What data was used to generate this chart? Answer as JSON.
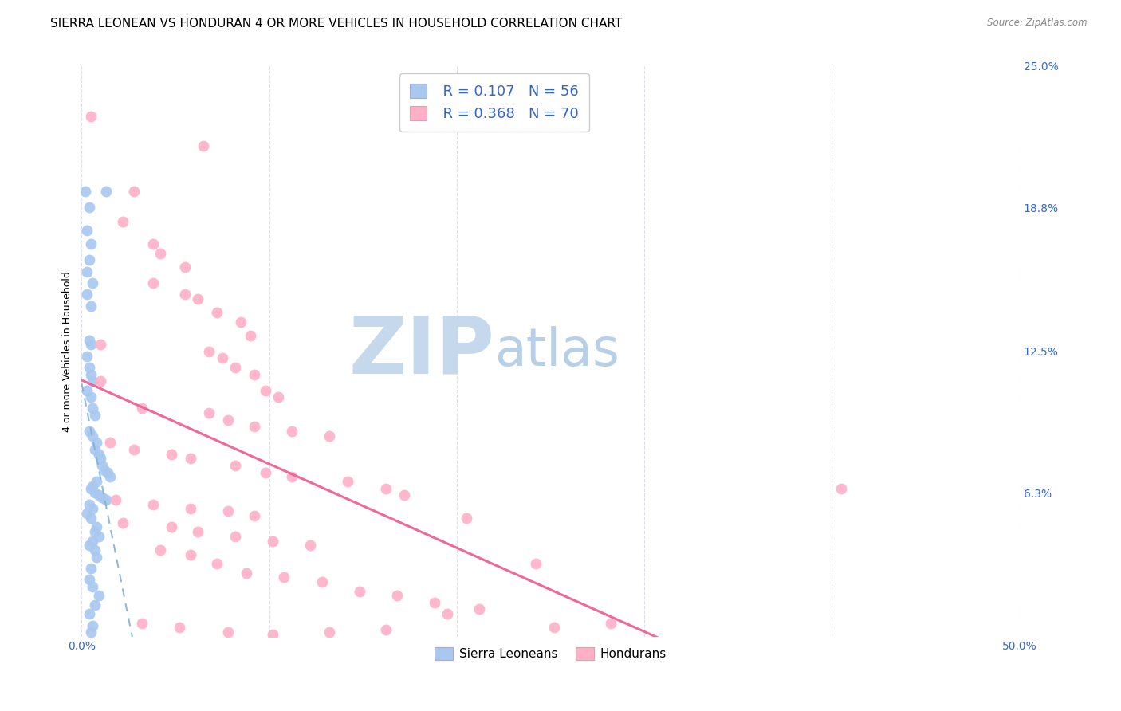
{
  "title": "SIERRA LEONEAN VS HONDURAN 4 OR MORE VEHICLES IN HOUSEHOLD CORRELATION CHART",
  "source": "Source: ZipAtlas.com",
  "ylabel": "4 or more Vehicles in Household",
  "xlabel": "",
  "xlim": [
    0.0,
    0.5
  ],
  "ylim": [
    0.0,
    0.25
  ],
  "xtick_positions": [
    0.0,
    0.1,
    0.2,
    0.3,
    0.4,
    0.5
  ],
  "xticklabels": [
    "0.0%",
    "",
    "",
    "",
    "",
    "50.0%"
  ],
  "ytick_positions": [
    0.0,
    0.063,
    0.125,
    0.188,
    0.25
  ],
  "yticklabels": [
    "",
    "6.3%",
    "12.5%",
    "18.8%",
    "25.0%"
  ],
  "watermark_zip": "ZIP",
  "watermark_atlas": "atlas",
  "legend_r1": "R = 0.107",
  "legend_n1": "N = 56",
  "legend_r2": "R = 0.368",
  "legend_n2": "N = 70",
  "sierra_color": "#a8c8f0",
  "honduran_color": "#ffb0c8",
  "sierra_line_color": "#7bafd4",
  "honduran_line_color": "#f06090",
  "title_fontsize": 11,
  "axis_label_fontsize": 9,
  "tick_fontsize": 10,
  "legend_fontsize": 13,
  "watermark_color_zip": "#c5d8ec",
  "watermark_color_atlas": "#b8cfe8",
  "watermark_fontsize": 72,
  "grid_color": "#ddddee",
  "sierra_scatter": [
    [
      0.002,
      0.195
    ],
    [
      0.004,
      0.188
    ],
    [
      0.003,
      0.178
    ],
    [
      0.005,
      0.172
    ],
    [
      0.004,
      0.165
    ],
    [
      0.003,
      0.16
    ],
    [
      0.006,
      0.155
    ],
    [
      0.003,
      0.15
    ],
    [
      0.005,
      0.145
    ],
    [
      0.013,
      0.195
    ],
    [
      0.004,
      0.13
    ],
    [
      0.005,
      0.128
    ],
    [
      0.003,
      0.123
    ],
    [
      0.004,
      0.118
    ],
    [
      0.005,
      0.115
    ],
    [
      0.006,
      0.112
    ],
    [
      0.003,
      0.108
    ],
    [
      0.005,
      0.105
    ],
    [
      0.006,
      0.1
    ],
    [
      0.007,
      0.097
    ],
    [
      0.004,
      0.09
    ],
    [
      0.006,
      0.088
    ],
    [
      0.008,
      0.085
    ],
    [
      0.007,
      0.082
    ],
    [
      0.009,
      0.08
    ],
    [
      0.01,
      0.078
    ],
    [
      0.011,
      0.075
    ],
    [
      0.012,
      0.073
    ],
    [
      0.014,
      0.072
    ],
    [
      0.015,
      0.07
    ],
    [
      0.008,
      0.068
    ],
    [
      0.006,
      0.066
    ],
    [
      0.005,
      0.065
    ],
    [
      0.007,
      0.063
    ],
    [
      0.009,
      0.062
    ],
    [
      0.011,
      0.061
    ],
    [
      0.013,
      0.06
    ],
    [
      0.004,
      0.058
    ],
    [
      0.006,
      0.056
    ],
    [
      0.003,
      0.054
    ],
    [
      0.005,
      0.052
    ],
    [
      0.008,
      0.048
    ],
    [
      0.007,
      0.046
    ],
    [
      0.009,
      0.044
    ],
    [
      0.006,
      0.042
    ],
    [
      0.004,
      0.04
    ],
    [
      0.007,
      0.038
    ],
    [
      0.008,
      0.035
    ],
    [
      0.005,
      0.03
    ],
    [
      0.004,
      0.025
    ],
    [
      0.006,
      0.022
    ],
    [
      0.009,
      0.018
    ],
    [
      0.007,
      0.014
    ],
    [
      0.004,
      0.01
    ],
    [
      0.006,
      0.005
    ],
    [
      0.005,
      0.002
    ]
  ],
  "honduran_scatter": [
    [
      0.005,
      0.228
    ],
    [
      0.065,
      0.215
    ],
    [
      0.028,
      0.195
    ],
    [
      0.022,
      0.182
    ],
    [
      0.038,
      0.172
    ],
    [
      0.042,
      0.168
    ],
    [
      0.055,
      0.162
    ],
    [
      0.038,
      0.155
    ],
    [
      0.055,
      0.15
    ],
    [
      0.062,
      0.148
    ],
    [
      0.072,
      0.142
    ],
    [
      0.085,
      0.138
    ],
    [
      0.09,
      0.132
    ],
    [
      0.01,
      0.128
    ],
    [
      0.068,
      0.125
    ],
    [
      0.075,
      0.122
    ],
    [
      0.082,
      0.118
    ],
    [
      0.092,
      0.115
    ],
    [
      0.01,
      0.112
    ],
    [
      0.098,
      0.108
    ],
    [
      0.105,
      0.105
    ],
    [
      0.032,
      0.1
    ],
    [
      0.068,
      0.098
    ],
    [
      0.078,
      0.095
    ],
    [
      0.092,
      0.092
    ],
    [
      0.112,
      0.09
    ],
    [
      0.132,
      0.088
    ],
    [
      0.015,
      0.085
    ],
    [
      0.028,
      0.082
    ],
    [
      0.048,
      0.08
    ],
    [
      0.058,
      0.078
    ],
    [
      0.082,
      0.075
    ],
    [
      0.098,
      0.072
    ],
    [
      0.112,
      0.07
    ],
    [
      0.142,
      0.068
    ],
    [
      0.162,
      0.065
    ],
    [
      0.172,
      0.062
    ],
    [
      0.018,
      0.06
    ],
    [
      0.038,
      0.058
    ],
    [
      0.058,
      0.056
    ],
    [
      0.078,
      0.055
    ],
    [
      0.092,
      0.053
    ],
    [
      0.205,
      0.052
    ],
    [
      0.022,
      0.05
    ],
    [
      0.048,
      0.048
    ],
    [
      0.062,
      0.046
    ],
    [
      0.082,
      0.044
    ],
    [
      0.102,
      0.042
    ],
    [
      0.122,
      0.04
    ],
    [
      0.042,
      0.038
    ],
    [
      0.058,
      0.036
    ],
    [
      0.072,
      0.032
    ],
    [
      0.088,
      0.028
    ],
    [
      0.108,
      0.026
    ],
    [
      0.128,
      0.024
    ],
    [
      0.148,
      0.02
    ],
    [
      0.168,
      0.018
    ],
    [
      0.188,
      0.015
    ],
    [
      0.212,
      0.012
    ],
    [
      0.242,
      0.032
    ],
    [
      0.032,
      0.006
    ],
    [
      0.052,
      0.004
    ],
    [
      0.078,
      0.002
    ],
    [
      0.102,
      0.001
    ],
    [
      0.132,
      0.002
    ],
    [
      0.162,
      0.003
    ],
    [
      0.405,
      0.065
    ],
    [
      0.252,
      0.004
    ],
    [
      0.282,
      0.006
    ],
    [
      0.195,
      0.01
    ]
  ]
}
